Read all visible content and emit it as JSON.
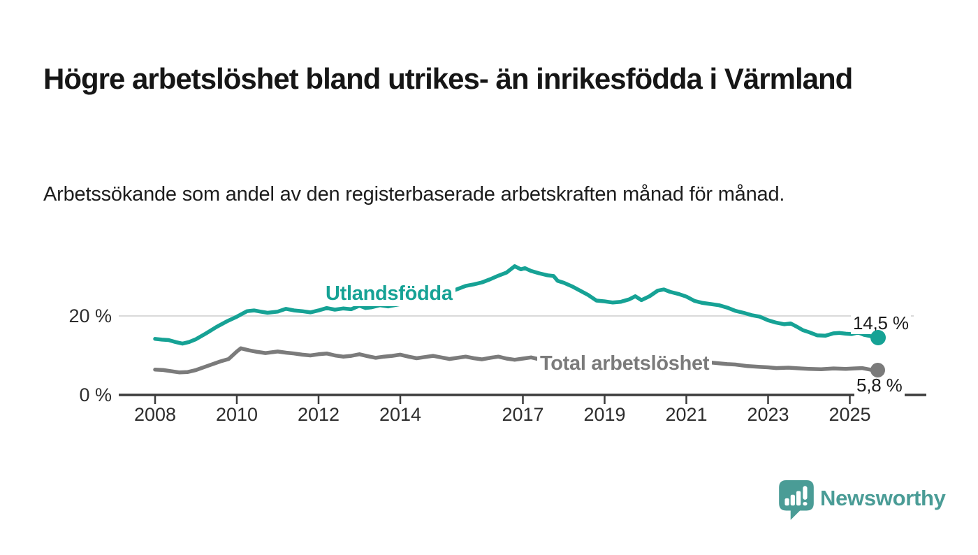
{
  "header": {
    "title": "Högre arbetslöshet bland utrikes- än inrikesfödda i Värmland",
    "subtitle": "Arbetssökande som andel av den registerbaserade arbetskraften månad för månad."
  },
  "chart_data": {
    "type": "line",
    "title": "Högre arbetslöshet bland utrikes- än inrikesfödda i Värmland",
    "subtitle": "Arbetssökande som andel av den registerbaserade arbetskraften månad för månad.",
    "xlabel": "",
    "ylabel": "",
    "unit": "%",
    "xlim": [
      2007.6,
      2026.3
    ],
    "ylim": [
      0,
      34
    ],
    "grid": "single-horizontal-gridline-at-20",
    "legend": "inline-series-labels",
    "x_ticks": [
      {
        "value": 2008,
        "label": "2008"
      },
      {
        "value": 2010,
        "label": "2010"
      },
      {
        "value": 2012,
        "label": "2012"
      },
      {
        "value": 2014,
        "label": "2014"
      },
      {
        "value": 2017,
        "label": "2017"
      },
      {
        "value": 2019,
        "label": "2019"
      },
      {
        "value": 2021,
        "label": "2021"
      },
      {
        "value": 2023,
        "label": "2023"
      },
      {
        "value": 2025,
        "label": "2025"
      }
    ],
    "y_ticks": [
      {
        "value": 0,
        "label": "0 %"
      },
      {
        "value": 20,
        "label": "20 %"
      }
    ],
    "series": [
      {
        "name": "Utlandsfödda",
        "color": "#16a295",
        "end_value": 14.5,
        "end_label": "14,5 %",
        "points": [
          [
            2008.0,
            14.2
          ],
          [
            2008.17,
            14.0
          ],
          [
            2008.33,
            13.9
          ],
          [
            2008.5,
            13.4
          ],
          [
            2008.67,
            13.0
          ],
          [
            2008.83,
            13.4
          ],
          [
            2009.0,
            14.1
          ],
          [
            2009.25,
            15.6
          ],
          [
            2009.5,
            17.2
          ],
          [
            2009.75,
            18.6
          ],
          [
            2010.0,
            19.8
          ],
          [
            2010.25,
            21.2
          ],
          [
            2010.42,
            21.4
          ],
          [
            2010.58,
            21.1
          ],
          [
            2010.75,
            20.8
          ],
          [
            2011.0,
            21.1
          ],
          [
            2011.2,
            21.8
          ],
          [
            2011.4,
            21.4
          ],
          [
            2011.6,
            21.2
          ],
          [
            2011.8,
            20.9
          ],
          [
            2012.0,
            21.4
          ],
          [
            2012.2,
            22.0
          ],
          [
            2012.4,
            21.6
          ],
          [
            2012.6,
            21.9
          ],
          [
            2012.8,
            21.7
          ],
          [
            2013.0,
            22.6
          ],
          [
            2013.15,
            22.0
          ],
          [
            2013.3,
            22.2
          ],
          [
            2013.5,
            22.7
          ],
          [
            2013.7,
            22.4
          ],
          [
            2014.0,
            23.0
          ],
          [
            2014.3,
            23.6
          ],
          [
            2014.6,
            24.1
          ],
          [
            2015.0,
            25.2
          ],
          [
            2015.3,
            26.4
          ],
          [
            2015.6,
            27.6
          ],
          [
            2015.8,
            28.0
          ],
          [
            2016.0,
            28.5
          ],
          [
            2016.2,
            29.3
          ],
          [
            2016.4,
            30.2
          ],
          [
            2016.6,
            31.0
          ],
          [
            2016.8,
            32.6
          ],
          [
            2016.95,
            31.8
          ],
          [
            2017.05,
            32.1
          ],
          [
            2017.2,
            31.4
          ],
          [
            2017.4,
            30.8
          ],
          [
            2017.6,
            30.3
          ],
          [
            2017.75,
            30.1
          ],
          [
            2017.85,
            28.9
          ],
          [
            2018.0,
            28.4
          ],
          [
            2018.2,
            27.5
          ],
          [
            2018.4,
            26.4
          ],
          [
            2018.6,
            25.3
          ],
          [
            2018.8,
            23.9
          ],
          [
            2019.0,
            23.7
          ],
          [
            2019.2,
            23.4
          ],
          [
            2019.4,
            23.6
          ],
          [
            2019.6,
            24.2
          ],
          [
            2019.75,
            25.0
          ],
          [
            2019.9,
            24.0
          ],
          [
            2020.1,
            25.0
          ],
          [
            2020.3,
            26.4
          ],
          [
            2020.45,
            26.7
          ],
          [
            2020.6,
            26.1
          ],
          [
            2020.8,
            25.6
          ],
          [
            2021.0,
            24.9
          ],
          [
            2021.2,
            23.8
          ],
          [
            2021.4,
            23.3
          ],
          [
            2021.6,
            23.0
          ],
          [
            2021.8,
            22.7
          ],
          [
            2022.0,
            22.1
          ],
          [
            2022.2,
            21.3
          ],
          [
            2022.4,
            20.8
          ],
          [
            2022.6,
            20.2
          ],
          [
            2022.8,
            19.8
          ],
          [
            2023.0,
            18.9
          ],
          [
            2023.2,
            18.3
          ],
          [
            2023.4,
            17.9
          ],
          [
            2023.55,
            18.1
          ],
          [
            2023.7,
            17.3
          ],
          [
            2023.85,
            16.4
          ],
          [
            2024.0,
            15.9
          ],
          [
            2024.2,
            15.1
          ],
          [
            2024.4,
            15.0
          ],
          [
            2024.6,
            15.6
          ],
          [
            2024.75,
            15.7
          ],
          [
            2024.9,
            15.5
          ],
          [
            2025.05,
            15.4
          ],
          [
            2025.2,
            15.8
          ],
          [
            2025.35,
            15.2
          ],
          [
            2025.5,
            14.9
          ],
          [
            2025.6,
            14.6
          ],
          [
            2025.7,
            14.5
          ]
        ]
      },
      {
        "name": "Total arbetslöshet",
        "color": "#7b7b7b",
        "end_value": 5.8,
        "end_label": "5,8 %",
        "points": [
          [
            2008.0,
            6.4
          ],
          [
            2008.2,
            6.3
          ],
          [
            2008.4,
            6.0
          ],
          [
            2008.6,
            5.7
          ],
          [
            2008.8,
            5.8
          ],
          [
            2009.0,
            6.3
          ],
          [
            2009.3,
            7.4
          ],
          [
            2009.6,
            8.5
          ],
          [
            2009.8,
            9.1
          ],
          [
            2010.0,
            11.0
          ],
          [
            2010.1,
            11.8
          ],
          [
            2010.3,
            11.3
          ],
          [
            2010.5,
            10.9
          ],
          [
            2010.7,
            10.6
          ],
          [
            2011.0,
            11.0
          ],
          [
            2011.2,
            10.7
          ],
          [
            2011.4,
            10.5
          ],
          [
            2011.6,
            10.2
          ],
          [
            2011.8,
            10.0
          ],
          [
            2012.0,
            10.3
          ],
          [
            2012.2,
            10.5
          ],
          [
            2012.4,
            10.0
          ],
          [
            2012.6,
            9.7
          ],
          [
            2012.8,
            9.9
          ],
          [
            2013.0,
            10.3
          ],
          [
            2013.2,
            9.8
          ],
          [
            2013.4,
            9.4
          ],
          [
            2013.6,
            9.7
          ],
          [
            2013.8,
            9.9
          ],
          [
            2014.0,
            10.2
          ],
          [
            2014.2,
            9.7
          ],
          [
            2014.4,
            9.3
          ],
          [
            2014.6,
            9.6
          ],
          [
            2014.8,
            9.9
          ],
          [
            2015.0,
            9.5
          ],
          [
            2015.2,
            9.1
          ],
          [
            2015.4,
            9.4
          ],
          [
            2015.6,
            9.7
          ],
          [
            2015.8,
            9.3
          ],
          [
            2016.0,
            9.0
          ],
          [
            2016.2,
            9.4
          ],
          [
            2016.4,
            9.7
          ],
          [
            2016.6,
            9.2
          ],
          [
            2016.8,
            8.9
          ],
          [
            2017.0,
            9.2
          ],
          [
            2017.2,
            9.5
          ],
          [
            2017.4,
            9.0
          ],
          [
            2017.6,
            8.7
          ],
          [
            2017.8,
            8.9
          ],
          [
            2018.0,
            9.1
          ],
          [
            2018.3,
            8.7
          ],
          [
            2018.6,
            8.4
          ],
          [
            2019.0,
            8.1
          ],
          [
            2019.5,
            8.3
          ],
          [
            2020.0,
            8.7
          ],
          [
            2020.4,
            9.3
          ],
          [
            2020.8,
            9.0
          ],
          [
            2021.2,
            8.6
          ],
          [
            2021.6,
            8.2
          ],
          [
            2022.0,
            7.8
          ],
          [
            2022.2,
            7.7
          ],
          [
            2022.5,
            7.3
          ],
          [
            2022.8,
            7.1
          ],
          [
            2023.0,
            7.0
          ],
          [
            2023.2,
            6.8
          ],
          [
            2023.5,
            6.9
          ],
          [
            2023.8,
            6.7
          ],
          [
            2024.0,
            6.6
          ],
          [
            2024.3,
            6.5
          ],
          [
            2024.6,
            6.7
          ],
          [
            2024.9,
            6.6
          ],
          [
            2025.1,
            6.7
          ],
          [
            2025.3,
            6.8
          ],
          [
            2025.5,
            6.4
          ],
          [
            2025.65,
            6.0
          ],
          [
            2025.7,
            5.8
          ]
        ]
      }
    ]
  },
  "footer": {
    "brand": "Newsworthy",
    "brand_color": "#4a9c96",
    "logo_icon": "newsworthy-speech-bubble-chart-icon"
  }
}
